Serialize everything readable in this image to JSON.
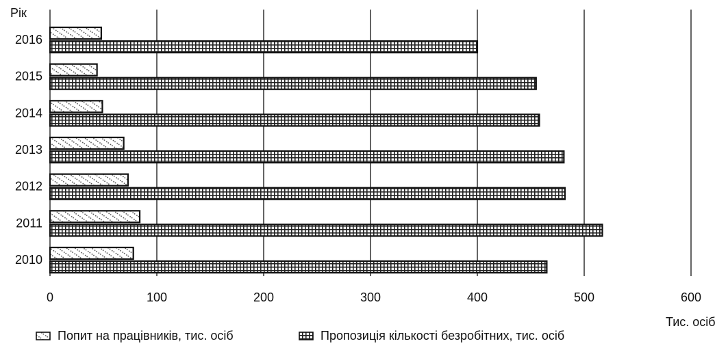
{
  "chart_data": {
    "type": "bar",
    "orientation": "horizontal",
    "ylabel": "Рік",
    "xlabel": "Тис. осіб",
    "categories": [
      "2016",
      "2015",
      "2014",
      "2013",
      "2012",
      "2011",
      "2010"
    ],
    "xlim": [
      0,
      600
    ],
    "xticks": [
      "0",
      "100",
      "200",
      "300",
      "400",
      "500",
      "600"
    ],
    "grid": "vertical",
    "legend_position": "bottom",
    "series": [
      {
        "name": "Попит на працівників, тис. осіб",
        "pattern": "diagonal-dots",
        "values": [
          48,
          44,
          49,
          69,
          73,
          84,
          78
        ]
      },
      {
        "name": "Пропозиція кількості безробітних, тис. осіб",
        "pattern": "grid",
        "values": [
          400,
          455,
          458,
          481,
          482,
          517,
          465
        ]
      }
    ]
  }
}
